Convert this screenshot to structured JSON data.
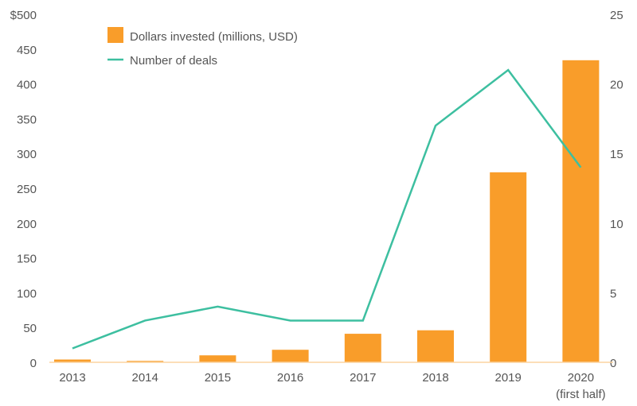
{
  "chart_data": {
    "type": "bar+line",
    "categories": [
      "2013",
      "2014",
      "2015",
      "2016",
      "2017",
      "2018",
      "2019",
      "2020"
    ],
    "category_sublabels": [
      "",
      "",
      "",
      "",
      "",
      "",
      "",
      "(first half)"
    ],
    "series": [
      {
        "name": "Dollars invested (millions, USD)",
        "type": "bar",
        "axis": "left",
        "color": "#F99D2A",
        "values": [
          4,
          2,
          10,
          18,
          41,
          46,
          273,
          434
        ]
      },
      {
        "name": "Number of deals",
        "type": "line",
        "axis": "right",
        "color": "#3DBFA0",
        "values": [
          1,
          3,
          4,
          3,
          3,
          17,
          21,
          14
        ]
      }
    ],
    "left_axis": {
      "ylim": [
        0,
        500
      ],
      "ticks": [
        "0",
        "50",
        "100",
        "150",
        "200",
        "250",
        "300",
        "350",
        "400",
        "450",
        "$500"
      ]
    },
    "right_axis": {
      "ylim": [
        0,
        25
      ],
      "ticks": [
        "0",
        "5",
        "10",
        "15",
        "20",
        "25"
      ]
    },
    "legend_placement": "top-left",
    "grid": false
  }
}
